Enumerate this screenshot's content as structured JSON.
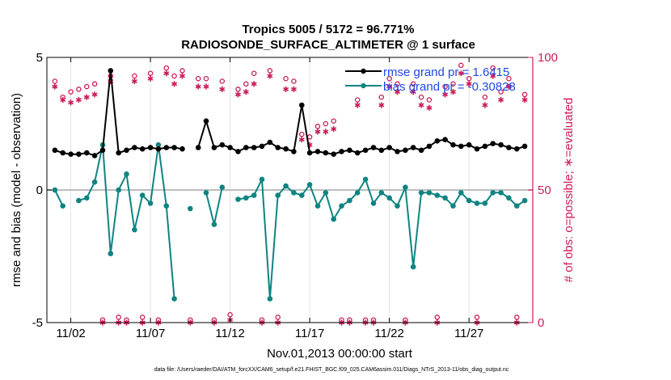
{
  "chart_data": {
    "type": "line",
    "title": "Tropics 5005 / 5172 = 96.771%",
    "subtitle": "RADIOSONDE_SURFACE_ALTIMETER @ 1 surface",
    "xlabel": "Nov.01,2013 00:00:00 start",
    "ylabel": "rmse and bias (model - observation)",
    "y2label": "# of obs: o=possible; ∗=evaluated",
    "footer": "data file: /Users/raeder/DAI/ATM_forcXX/CAM6_setup/f.e21.FHIST_BGC.f09_025.CAM6assim.011/Diags_NTrS_2013-11/obs_diag_output.nc",
    "xlim": [
      0.5,
      31
    ],
    "ylim": [
      -5,
      5
    ],
    "y2lim": [
      0,
      100
    ],
    "x_ticks": [
      2,
      7,
      12,
      17,
      22,
      27
    ],
    "x_tick_labels": [
      "11/02",
      "11/07",
      "11/12",
      "11/17",
      "11/22",
      "11/27"
    ],
    "y_ticks": [
      -5,
      0,
      5
    ],
    "y_tick_labels": [
      "-5",
      "0",
      "5"
    ],
    "y2_ticks": [
      0,
      50,
      100
    ],
    "y2_tick_labels": [
      "0",
      "50",
      "100"
    ],
    "grid": true,
    "legend_position": "top-right",
    "x": [
      1,
      1.5,
      2,
      2.5,
      3,
      3.5,
      4,
      4.5,
      5,
      5.5,
      6,
      6.5,
      7,
      7.5,
      8,
      8.5,
      9,
      9.5,
      10,
      10.5,
      11,
      11.5,
      12,
      12.5,
      13,
      13.5,
      14,
      14.5,
      15,
      15.5,
      16,
      16.5,
      17,
      17.5,
      18,
      18.5,
      19,
      19.5,
      20,
      20.5,
      21,
      21.5,
      22,
      22.5,
      23,
      23.5,
      24,
      24.5,
      25,
      25.5,
      26,
      26.5,
      27,
      27.5,
      28,
      28.5,
      29,
      29.5,
      30,
      30.5
    ],
    "series": [
      {
        "name": "rmse grand pr = 1.6415",
        "axis": "left",
        "color": "#000000",
        "marker": "filled-circle",
        "values": [
          1.5,
          1.4,
          1.35,
          1.35,
          1.4,
          1.3,
          1.5,
          4.5,
          1.4,
          1.5,
          1.6,
          1.55,
          1.6,
          1.55,
          1.6,
          1.6,
          1.55,
          null,
          1.6,
          2.6,
          1.6,
          1.7,
          1.6,
          1.45,
          1.6,
          1.6,
          1.65,
          1.8,
          1.6,
          1.55,
          1.45,
          3.2,
          1.4,
          1.45,
          1.4,
          1.35,
          1.45,
          1.5,
          1.4,
          1.5,
          1.6,
          1.5,
          1.6,
          1.45,
          1.5,
          1.6,
          1.5,
          1.65,
          1.85,
          1.9,
          1.7,
          1.65,
          1.7,
          1.55,
          1.65,
          1.75,
          1.7,
          1.6,
          1.55,
          1.65
        ]
      },
      {
        "name": "bias grand pr = -0.30828",
        "axis": "left",
        "color": "#0f8482",
        "marker": "filled-circle",
        "values": [
          0,
          -0.6,
          null,
          -0.4,
          -0.3,
          0.3,
          1.7,
          -2.4,
          0,
          0.6,
          -1.5,
          -0.2,
          -0.5,
          1.7,
          -0.6,
          -4.1,
          null,
          -0.7,
          null,
          -0.1,
          -1.3,
          0.1,
          null,
          -0.35,
          -0.3,
          -0.2,
          0.4,
          -4.1,
          -0.2,
          0.15,
          -0.1,
          -0.2,
          0.2,
          -0.6,
          -0.1,
          -1.1,
          -0.6,
          -0.4,
          -0.1,
          0.4,
          -0.5,
          -0.1,
          -0.3,
          -0.6,
          0.1,
          -2.9,
          -0.1,
          -0.1,
          -0.2,
          -0.3,
          -0.6,
          -0.1,
          -0.4,
          -0.5,
          -0.5,
          -0.1,
          -0.1,
          -0.3,
          -0.6,
          -0.4
        ]
      },
      {
        "name": "possible",
        "axis": "right",
        "color": "#cc1c5a",
        "marker": "open-circle",
        "values": [
          91,
          85,
          87,
          88,
          89,
          90,
          1,
          93,
          2,
          1,
          93,
          2,
          94,
          1,
          96,
          93,
          95,
          1,
          92,
          92,
          1,
          91,
          3,
          88,
          90,
          94,
          1,
          95,
          2,
          92,
          91,
          71,
          70,
          74,
          75,
          76,
          1,
          1,
          84,
          1,
          1,
          85,
          92,
          90,
          1,
          90,
          85,
          84,
          2,
          89,
          90,
          97,
          92,
          2,
          85,
          96,
          87,
          92,
          2,
          86
        ]
      },
      {
        "name": "evaluated",
        "axis": "right",
        "color": "#cc1c5a",
        "marker": "asterisk",
        "values": [
          89,
          84,
          83,
          84,
          85,
          86,
          0,
          91,
          0,
          0,
          91,
          0,
          92,
          0,
          94,
          90,
          93,
          0,
          89,
          89,
          0,
          88,
          1,
          86,
          87,
          90,
          0,
          93,
          0,
          88,
          88,
          69,
          67,
          72,
          72,
          73,
          0,
          0,
          82,
          0,
          0,
          82,
          89,
          87,
          0,
          87,
          82,
          81,
          0,
          86,
          87,
          94,
          90,
          0,
          82,
          93,
          84,
          89,
          0,
          84
        ]
      }
    ]
  }
}
